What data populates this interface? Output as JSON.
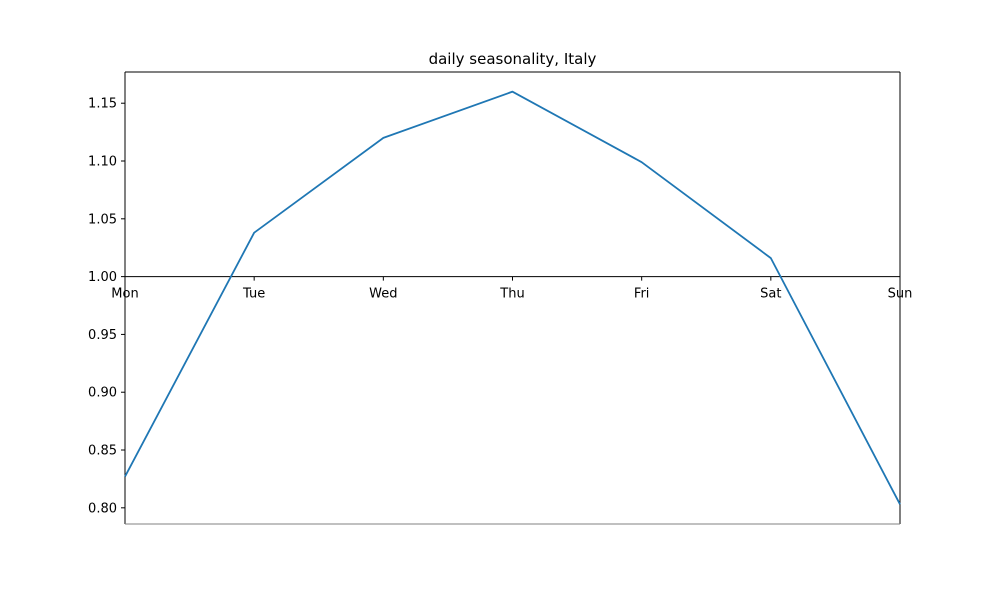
{
  "chart_data": {
    "type": "line",
    "title": "daily seasonality, Italy",
    "xlabel": "",
    "ylabel": "",
    "categories": [
      "Mon",
      "Tue",
      "Wed",
      "Thu",
      "Fri",
      "Sat",
      "Sun"
    ],
    "series": [
      {
        "values": [
          0.827,
          1.038,
          1.12,
          1.16,
          1.099,
          1.016,
          0.803
        ],
        "color": "#1f77b4"
      }
    ],
    "ylim": [
      0.786,
      1.177
    ],
    "yticks": [
      0.8,
      0.85,
      0.9,
      0.95,
      1.0,
      1.05,
      1.1,
      1.15
    ],
    "ytick_labels": [
      "0.80",
      "0.85",
      "0.90",
      "0.95",
      "1.00",
      "1.05",
      "1.10",
      "1.15"
    ],
    "x_axis_crosses_at": 1.0,
    "grid": false,
    "legend": "none"
  }
}
